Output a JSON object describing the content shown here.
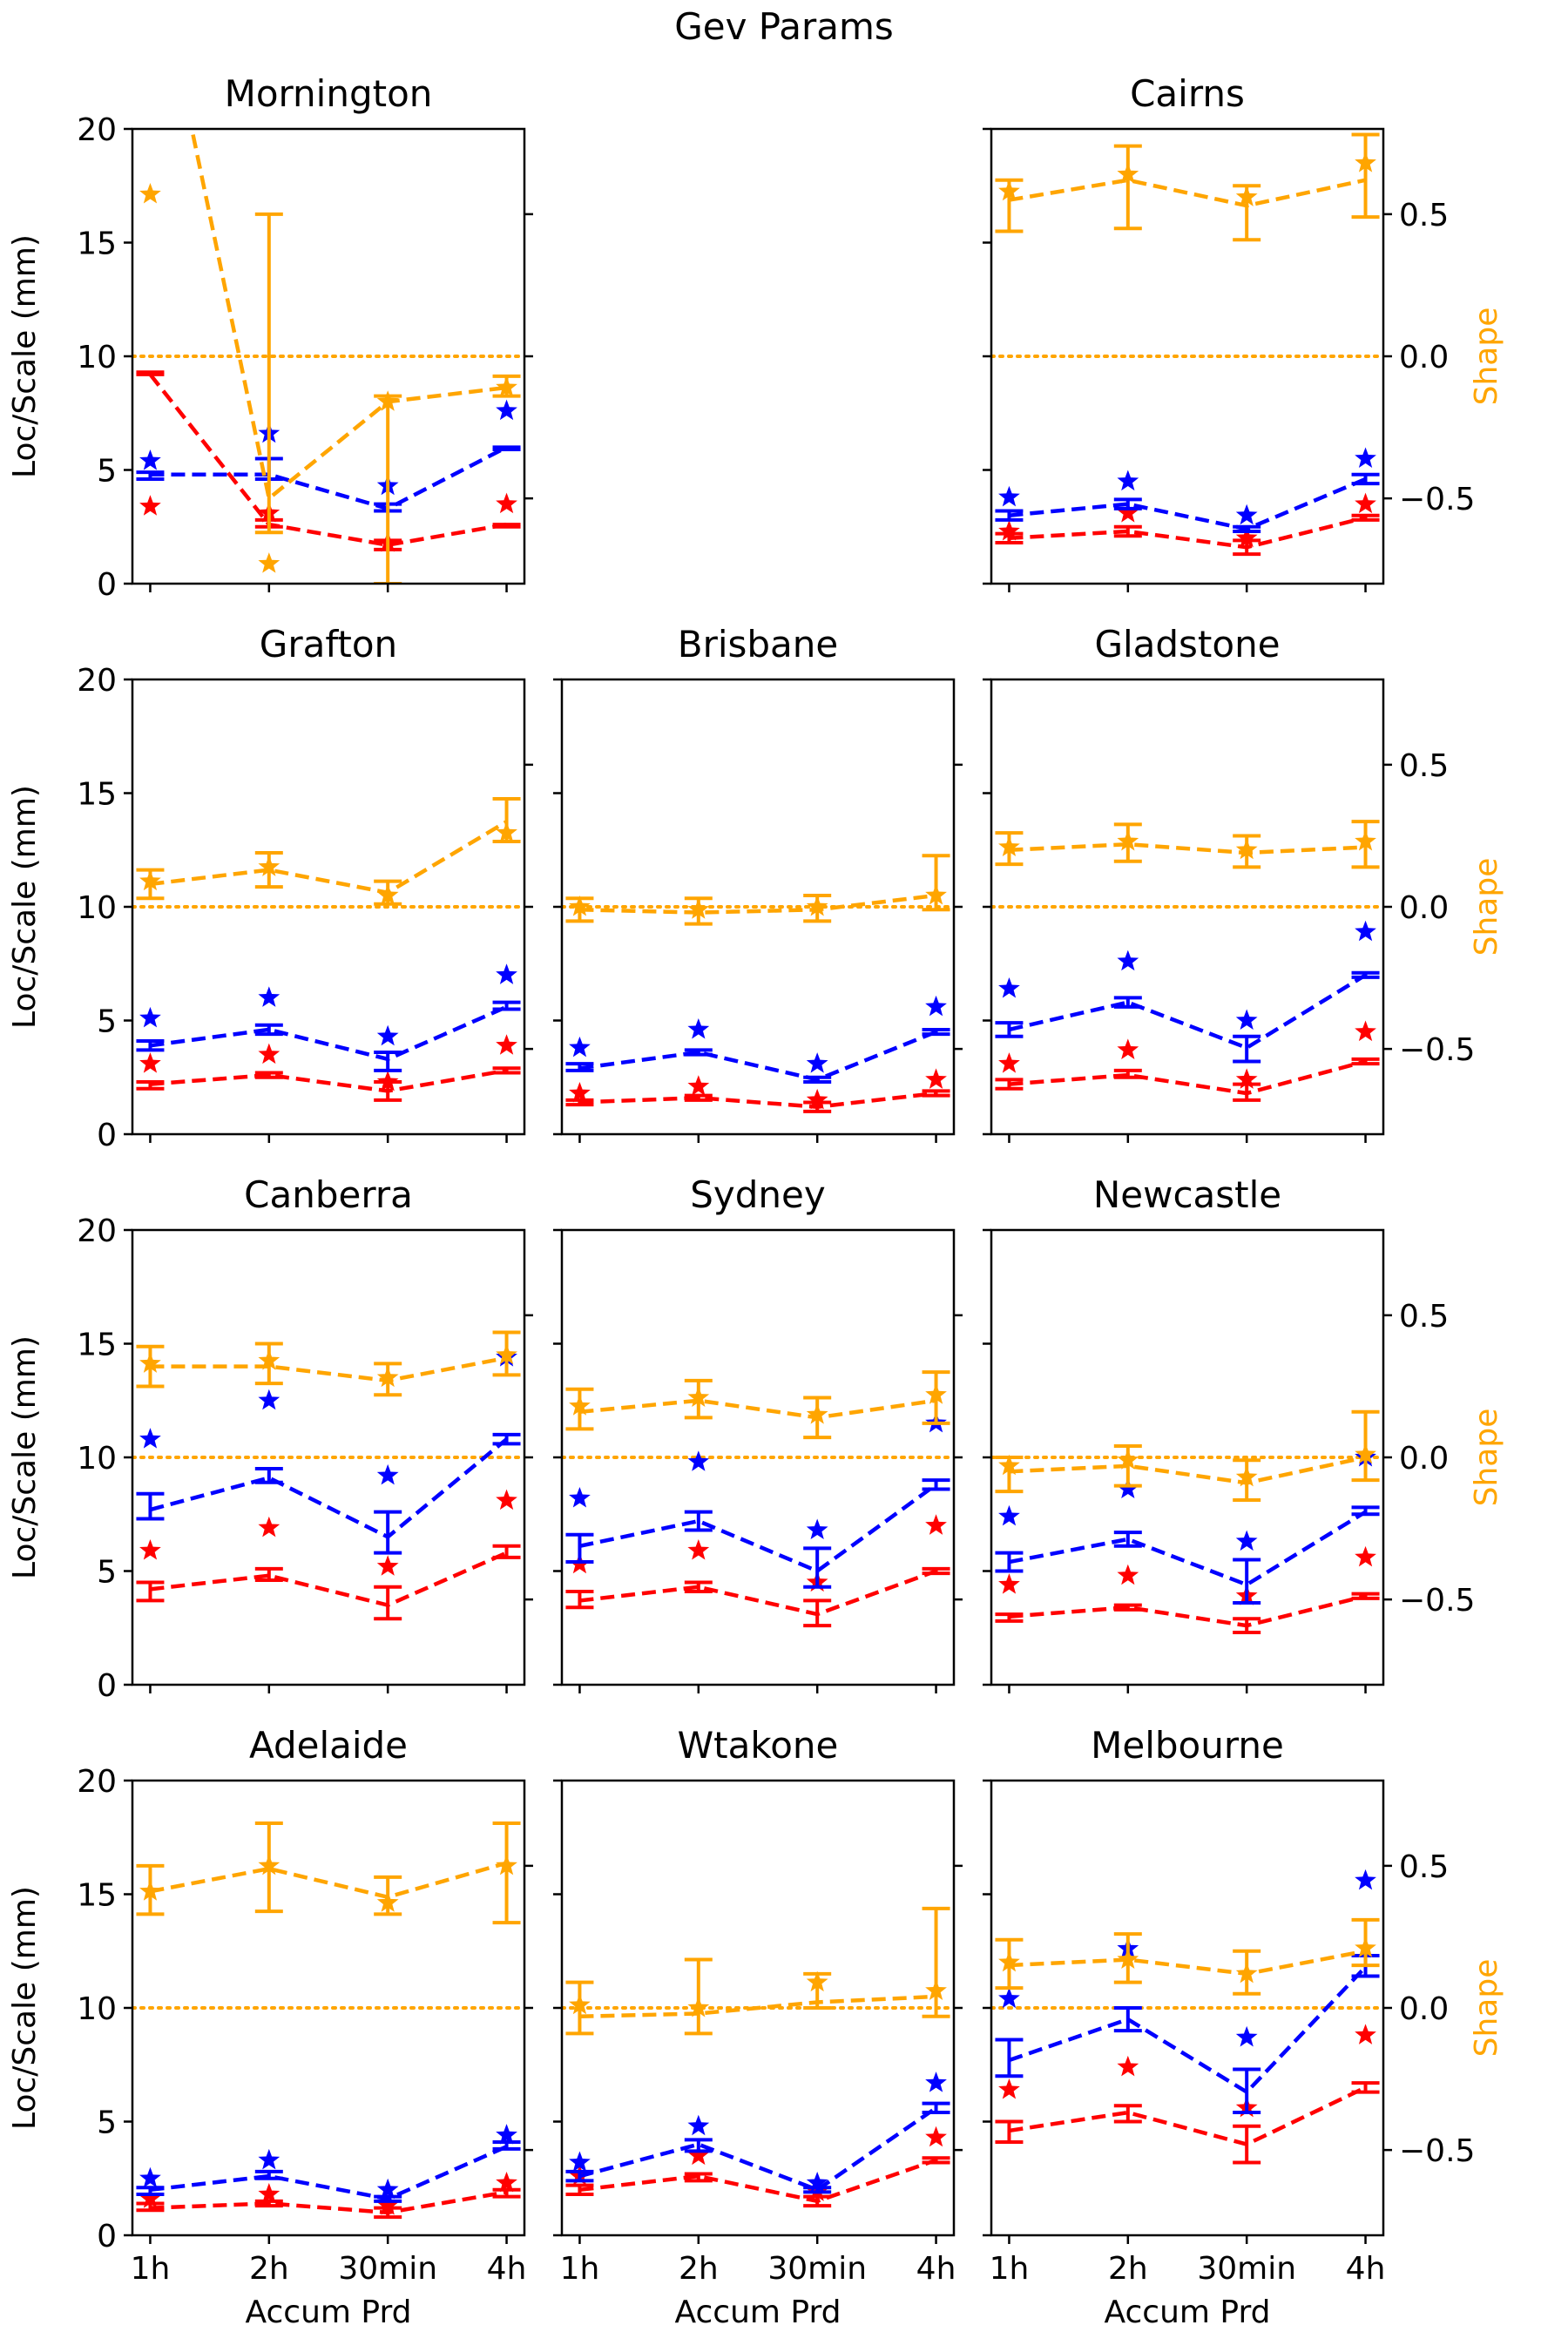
{
  "figure": {
    "suptitle": "Gev Params",
    "colors": {
      "location": "#ff0000",
      "scale": "#0000ff",
      "shape": "#ffa500",
      "axis": "#000000",
      "shape_axis_label": "#ffa500"
    },
    "grid": false
  },
  "chart_data": {
    "type": "line",
    "title": "Gev Params",
    "xlabel": "Accum Prd",
    "ylabel": "Loc/Scale (mm)",
    "y2label": "Shape",
    "categories": [
      "1h",
      "2h",
      "30min",
      "4h"
    ],
    "ylim": [
      0,
      20
    ],
    "y2lim": [
      -0.8,
      0.8
    ],
    "yticks": [
      0,
      5,
      10,
      15,
      20
    ],
    "y2ticks": [
      -0.5,
      0.0,
      0.5
    ],
    "y2tick_labels": [
      "−0.5",
      "0.0",
      "0.5"
    ],
    "shape_reference_line": 0.0,
    "series_encoding": {
      "location": "red dashed line, error bars, star markers",
      "scale": "blue dashed line, error bars, star markers",
      "shape": "orange dashed line on right axis, error bars, star markers"
    },
    "panels": [
      {
        "title": "Mornington",
        "location": {
          "values": [
            9.2,
            2.6,
            1.7,
            2.6
          ],
          "err_low": [
            9.2,
            2.5,
            1.5,
            2.5
          ],
          "err_high": [
            9.3,
            2.8,
            1.9,
            2.6
          ],
          "stars": [
            3.4,
            3.1,
            1.8,
            3.5
          ]
        },
        "scale": {
          "values": [
            4.8,
            4.8,
            3.3,
            6.0
          ],
          "err_low": [
            4.6,
            4.6,
            3.2,
            5.9
          ],
          "err_high": [
            4.9,
            5.5,
            3.5,
            6.0
          ],
          "stars": [
            5.4,
            6.6,
            4.3,
            7.6
          ]
        },
        "shape": {
          "values": [
            1.5,
            -0.5,
            -0.16,
            -0.11
          ],
          "err_low": [
            null,
            -0.62,
            -0.8,
            -0.14
          ],
          "err_high": [
            null,
            0.5,
            -0.14,
            -0.07
          ],
          "stars": [
            0.57,
            -0.73,
            -0.16,
            -0.11
          ]
        }
      },
      {
        "title": "Cairns",
        "location": {
          "values": [
            2.0,
            2.3,
            1.6,
            2.9
          ],
          "err_low": [
            1.8,
            2.1,
            1.3,
            2.8
          ],
          "err_high": [
            2.2,
            2.5,
            1.9,
            3.0
          ],
          "stars": [
            2.3,
            3.1,
            2.0,
            3.5
          ]
        },
        "scale": {
          "values": [
            3.0,
            3.5,
            2.4,
            4.6
          ],
          "err_low": [
            2.8,
            3.3,
            2.3,
            4.4
          ],
          "err_high": [
            3.2,
            3.7,
            2.5,
            4.8
          ],
          "stars": [
            3.8,
            4.5,
            3.0,
            5.5
          ]
        },
        "shape": {
          "values": [
            0.55,
            0.62,
            0.53,
            0.62
          ],
          "err_low": [
            0.44,
            0.45,
            0.41,
            0.49
          ],
          "err_high": [
            0.62,
            0.74,
            0.6,
            0.78
          ],
          "stars": [
            0.58,
            0.64,
            0.56,
            0.68
          ]
        }
      },
      {
        "title": "Grafton",
        "location": {
          "values": [
            2.2,
            2.6,
            1.9,
            2.8
          ],
          "err_low": [
            2.0,
            2.5,
            1.5,
            2.7
          ],
          "err_high": [
            2.3,
            2.7,
            2.3,
            2.9
          ],
          "stars": [
            3.1,
            3.5,
            2.3,
            3.9
          ]
        },
        "scale": {
          "values": [
            3.9,
            4.6,
            3.3,
            5.6
          ],
          "err_low": [
            3.7,
            4.4,
            2.8,
            5.5
          ],
          "err_high": [
            4.1,
            4.8,
            3.6,
            5.8
          ],
          "stars": [
            5.1,
            6.0,
            4.3,
            7.0
          ]
        },
        "shape": {
          "values": [
            0.08,
            0.13,
            0.05,
            0.3
          ],
          "err_low": [
            0.03,
            0.07,
            0.01,
            0.23
          ],
          "err_high": [
            0.13,
            0.19,
            0.09,
            0.38
          ],
          "stars": [
            0.09,
            0.14,
            0.04,
            0.26
          ]
        }
      },
      {
        "title": "Brisbane",
        "location": {
          "values": [
            1.4,
            1.6,
            1.2,
            1.8
          ],
          "err_low": [
            1.3,
            1.5,
            1.0,
            1.7
          ],
          "err_high": [
            1.5,
            1.7,
            1.4,
            1.9
          ],
          "stars": [
            1.8,
            2.1,
            1.5,
            2.4
          ]
        },
        "scale": {
          "values": [
            2.9,
            3.6,
            2.4,
            4.5
          ],
          "err_low": [
            2.8,
            3.5,
            2.3,
            4.4
          ],
          "err_high": [
            3.1,
            3.7,
            2.5,
            4.6
          ],
          "stars": [
            3.8,
            4.6,
            3.1,
            5.6
          ]
        },
        "shape": {
          "values": [
            -0.01,
            -0.02,
            -0.01,
            0.04
          ],
          "err_low": [
            -0.05,
            -0.06,
            -0.05,
            -0.01
          ],
          "err_high": [
            0.03,
            0.03,
            0.04,
            0.18
          ],
          "stars": [
            0.0,
            -0.01,
            0.0,
            0.04
          ]
        }
      },
      {
        "title": "Gladstone",
        "location": {
          "values": [
            2.2,
            2.6,
            1.8,
            3.2
          ],
          "err_low": [
            2.0,
            2.5,
            1.5,
            3.1
          ],
          "err_high": [
            2.4,
            2.8,
            2.2,
            3.3
          ],
          "stars": [
            3.1,
            3.7,
            2.4,
            4.5
          ]
        },
        "scale": {
          "values": [
            4.6,
            5.8,
            3.8,
            7.0
          ],
          "err_low": [
            4.3,
            5.6,
            3.2,
            6.9
          ],
          "err_high": [
            4.9,
            6.0,
            4.3,
            7.1
          ],
          "stars": [
            6.4,
            7.6,
            5.0,
            8.9
          ]
        },
        "shape": {
          "values": [
            0.2,
            0.22,
            0.19,
            0.21
          ],
          "err_low": [
            0.15,
            0.16,
            0.14,
            0.14
          ],
          "err_high": [
            0.26,
            0.29,
            0.25,
            0.3
          ],
          "stars": [
            0.21,
            0.23,
            0.2,
            0.23
          ]
        }
      },
      {
        "title": "Canberra",
        "location": {
          "values": [
            4.2,
            4.8,
            3.5,
            5.8
          ],
          "err_low": [
            3.7,
            4.6,
            2.9,
            5.6
          ],
          "err_high": [
            4.5,
            5.1,
            4.3,
            6.1
          ],
          "stars": [
            5.9,
            6.9,
            5.2,
            8.1
          ]
        },
        "scale": {
          "values": [
            7.7,
            9.1,
            6.5,
            10.8
          ],
          "err_low": [
            7.3,
            8.9,
            5.8,
            10.6
          ],
          "err_high": [
            8.4,
            9.5,
            7.6,
            11.0
          ],
          "stars": [
            10.8,
            12.5,
            9.2,
            14.4
          ]
        },
        "shape": {
          "values": [
            0.32,
            0.32,
            0.27,
            0.35
          ],
          "err_low": [
            0.25,
            0.26,
            0.22,
            0.29
          ],
          "err_high": [
            0.39,
            0.4,
            0.33,
            0.44
          ],
          "stars": [
            0.33,
            0.34,
            0.28,
            0.36
          ]
        }
      },
      {
        "title": "Sydney",
        "location": {
          "values": [
            3.7,
            4.3,
            3.1,
            5.0
          ],
          "err_low": [
            3.4,
            4.1,
            2.6,
            4.9
          ],
          "err_high": [
            4.1,
            4.5,
            3.7,
            5.1
          ],
          "stars": [
            5.3,
            5.9,
            4.5,
            7.0
          ]
        },
        "scale": {
          "values": [
            6.1,
            7.2,
            5.0,
            8.8
          ],
          "err_low": [
            5.4,
            6.8,
            4.3,
            8.6
          ],
          "err_high": [
            6.6,
            7.6,
            6.0,
            9.0
          ],
          "stars": [
            8.2,
            9.8,
            6.8,
            11.5
          ]
        },
        "shape": {
          "values": [
            0.16,
            0.2,
            0.14,
            0.2
          ],
          "err_low": [
            0.1,
            0.14,
            0.07,
            0.12
          ],
          "err_high": [
            0.24,
            0.27,
            0.21,
            0.3
          ],
          "stars": [
            0.18,
            0.21,
            0.15,
            0.22
          ]
        }
      },
      {
        "title": "Newcastle",
        "location": {
          "values": [
            3.0,
            3.4,
            2.6,
            3.9
          ],
          "err_low": [
            2.8,
            3.3,
            2.3,
            3.8
          ],
          "err_high": [
            3.1,
            3.5,
            2.9,
            4.0
          ],
          "stars": [
            4.4,
            4.8,
            3.9,
            5.6
          ]
        },
        "scale": {
          "values": [
            5.4,
            6.4,
            4.4,
            7.6
          ],
          "err_low": [
            5.0,
            6.1,
            3.6,
            7.5
          ],
          "err_high": [
            5.8,
            6.7,
            5.5,
            7.8
          ],
          "stars": [
            7.4,
            8.6,
            6.3,
            10.0
          ]
        },
        "shape": {
          "values": [
            -0.05,
            -0.03,
            -0.09,
            0.0
          ],
          "err_low": [
            -0.12,
            -0.1,
            -0.15,
            -0.08
          ],
          "err_high": [
            0.0,
            0.04,
            -0.01,
            0.16
          ],
          "stars": [
            -0.03,
            -0.01,
            -0.07,
            0.01
          ]
        }
      },
      {
        "title": "Adelaide",
        "location": {
          "values": [
            1.2,
            1.4,
            1.0,
            1.9
          ],
          "err_low": [
            1.1,
            1.3,
            0.8,
            1.7
          ],
          "err_high": [
            1.4,
            1.5,
            1.2,
            2.0
          ],
          "stars": [
            1.6,
            1.8,
            1.3,
            2.3
          ]
        },
        "scale": {
          "values": [
            2.0,
            2.6,
            1.6,
            3.9
          ],
          "err_low": [
            1.8,
            2.5,
            1.5,
            3.8
          ],
          "err_high": [
            2.1,
            2.8,
            1.7,
            4.1
          ],
          "stars": [
            2.5,
            3.3,
            2.0,
            4.4
          ]
        },
        "shape": {
          "values": [
            0.41,
            0.49,
            0.39,
            0.51
          ],
          "err_low": [
            0.33,
            0.34,
            0.33,
            0.3
          ],
          "err_high": [
            0.5,
            0.65,
            0.46,
            0.65
          ],
          "stars": [
            0.41,
            0.5,
            0.37,
            0.5
          ]
        }
      },
      {
        "title": "Wtakone",
        "location": {
          "values": [
            2.0,
            2.6,
            1.5,
            3.3
          ],
          "err_low": [
            1.8,
            2.4,
            1.3,
            3.2
          ],
          "err_high": [
            2.2,
            2.7,
            1.7,
            3.4
          ],
          "stars": [
            2.6,
            3.5,
            1.9,
            4.3
          ]
        },
        "scale": {
          "values": [
            2.6,
            4.0,
            2.0,
            5.6
          ],
          "err_low": [
            2.4,
            3.7,
            1.9,
            5.4
          ],
          "err_high": [
            2.8,
            4.2,
            2.1,
            5.8
          ],
          "stars": [
            3.2,
            4.8,
            2.3,
            6.7
          ]
        },
        "shape": {
          "values": [
            -0.03,
            -0.02,
            0.02,
            0.04
          ],
          "err_low": [
            -0.09,
            -0.09,
            0.0,
            -0.03
          ],
          "err_high": [
            0.09,
            0.17,
            0.12,
            0.35
          ],
          "stars": [
            0.01,
            0.0,
            0.09,
            0.06
          ]
        }
      },
      {
        "title": "Melbourne",
        "location": {
          "values": [
            4.6,
            5.4,
            4.0,
            6.5
          ],
          "err_low": [
            4.1,
            5.0,
            3.2,
            6.3
          ],
          "err_high": [
            5.0,
            5.7,
            4.8,
            6.7
          ],
          "stars": [
            6.4,
            7.4,
            5.6,
            8.8
          ]
        },
        "scale": {
          "values": [
            7.7,
            9.5,
            6.3,
            11.8
          ],
          "err_low": [
            7.0,
            9.0,
            5.4,
            11.4
          ],
          "err_high": [
            8.6,
            10.0,
            7.3,
            12.3
          ],
          "stars": [
            10.4,
            12.6,
            8.7,
            15.6
          ]
        },
        "shape": {
          "values": [
            0.15,
            0.17,
            0.12,
            0.2
          ],
          "err_low": [
            0.07,
            0.09,
            0.05,
            0.15
          ],
          "err_high": [
            0.24,
            0.26,
            0.2,
            0.31
          ],
          "stars": [
            0.16,
            0.17,
            0.12,
            0.21
          ]
        }
      }
    ]
  }
}
